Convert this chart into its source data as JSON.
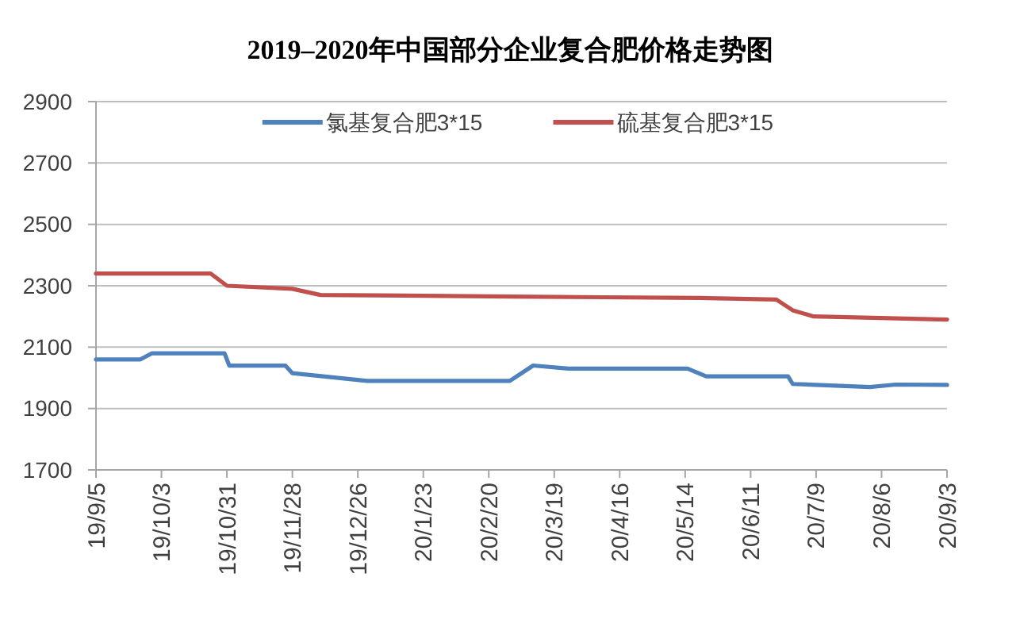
{
  "chart_data": {
    "type": "line",
    "title": "2019–2020年中国部分企业复合肥价格走势图",
    "series": [
      {
        "name": "氯基复合肥3*15",
        "color": "#4f81bd",
        "x": [
          "2019-09-05",
          "2019-09-24",
          "2019-09-29",
          "2019-10-30",
          "2019-11-01",
          "2019-11-25",
          "2019-11-28",
          "2019-12-30",
          "2020-02-29",
          "2020-03-10",
          "2020-03-25",
          "2020-05-15",
          "2020-05-23",
          "2020-06-27",
          "2020-06-29",
          "2020-08-01",
          "2020-08-12",
          "2020-09-03"
        ],
        "values": [
          2060,
          2060,
          2080,
          2080,
          2040,
          2040,
          2015,
          1990,
          1990,
          2040,
          2030,
          2030,
          2005,
          2005,
          1980,
          1970,
          1978,
          1977
        ]
      },
      {
        "name": "硫基复合肥3*15",
        "color": "#c0504d",
        "x": [
          "2019-09-05",
          "2019-10-24",
          "2019-10-31",
          "2019-11-28",
          "2019-12-10",
          "2020-03-01",
          "2020-05-20",
          "2020-06-22",
          "2020-06-29",
          "2020-07-08",
          "2020-09-03"
        ],
        "values": [
          2340,
          2340,
          2300,
          2290,
          2270,
          2265,
          2260,
          2255,
          2220,
          2200,
          2190
        ]
      }
    ],
    "xlim": [
      "2019-09-05",
      "2020-09-03"
    ],
    "xticks": [
      {
        "value": "2019-09-05",
        "label": "19/9/5"
      },
      {
        "value": "2019-10-03",
        "label": "19/10/3"
      },
      {
        "value": "2019-10-31",
        "label": "19/10/31"
      },
      {
        "value": "2019-11-28",
        "label": "19/11/28"
      },
      {
        "value": "2019-12-26",
        "label": "19/12/26"
      },
      {
        "value": "2020-01-23",
        "label": "20/1/23"
      },
      {
        "value": "2020-02-20",
        "label": "20/2/20"
      },
      {
        "value": "2020-03-19",
        "label": "20/3/19"
      },
      {
        "value": "2020-04-16",
        "label": "20/4/16"
      },
      {
        "value": "2020-05-14",
        "label": "20/5/14"
      },
      {
        "value": "2020-06-11",
        "label": "20/6/11"
      },
      {
        "value": "2020-07-09",
        "label": "20/7/9"
      },
      {
        "value": "2020-08-06",
        "label": "20/8/6"
      },
      {
        "value": "2020-09-03",
        "label": "20/9/3"
      }
    ],
    "ylim": [
      1700,
      2900
    ],
    "yticks": [
      1700,
      1900,
      2100,
      2300,
      2500,
      2700,
      2900
    ],
    "grid": "y",
    "legend": "top"
  }
}
